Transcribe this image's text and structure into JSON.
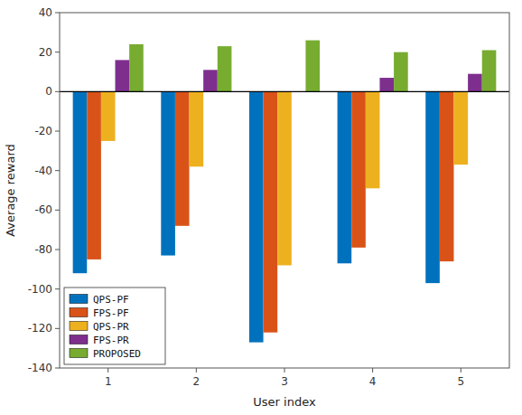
{
  "chart_data": {
    "type": "bar",
    "categories": [
      "1",
      "2",
      "3",
      "4",
      "5"
    ],
    "series": [
      {
        "name": "QPS-PF",
        "color": "#0072BD",
        "values": [
          -92,
          -83,
          -127,
          -87,
          -97
        ]
      },
      {
        "name": "FPS-PF",
        "color": "#D95319",
        "values": [
          -85,
          -68,
          -122,
          -79,
          -86
        ]
      },
      {
        "name": "QPS-PR",
        "color": "#EDB120",
        "values": [
          -25,
          -38,
          -88,
          -49,
          -37
        ]
      },
      {
        "name": "FPS-PR",
        "color": "#7E2F8E",
        "values": [
          16,
          11,
          0,
          7,
          9
        ]
      },
      {
        "name": "PROPOSED",
        "color": "#77AC30",
        "values": [
          24,
          23,
          26,
          20,
          21
        ]
      }
    ],
    "xlabel": "User index",
    "ylabel": "Average reward",
    "ylim": [
      -140,
      40
    ],
    "yticks": [
      -140,
      -120,
      -100,
      -80,
      -60,
      -40,
      -20,
      0,
      20,
      40
    ],
    "grid": false,
    "legend": "lower left"
  }
}
